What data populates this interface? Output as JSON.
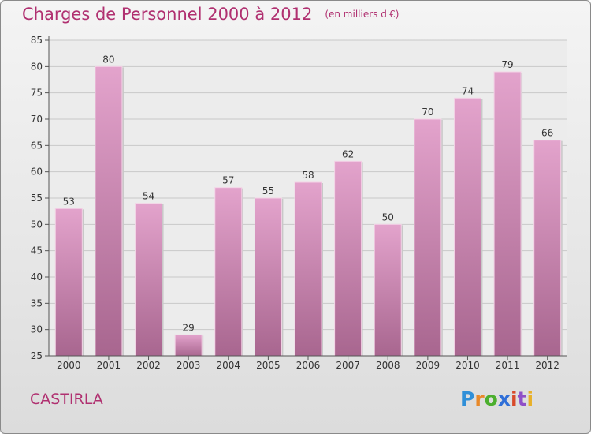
{
  "title": "Charges de Personnel 2000 à 2012",
  "subtitle": "(en milliers d'€)",
  "commune": "CASTIRLA",
  "logo": {
    "letters": [
      "P",
      "r",
      "o",
      "x",
      "i",
      "t",
      "i"
    ],
    "colors": [
      "#2f8fd8",
      "#e8892a",
      "#4caf2e",
      "#2f6fd8",
      "#d84a2a",
      "#8f4fc8",
      "#e8b02a"
    ]
  },
  "colors": {
    "accent": "#b03070",
    "bar_top": "#e3a3cc",
    "bar_bottom": "#a8668f"
  },
  "chart_data": {
    "type": "bar",
    "categories": [
      "2000",
      "2001",
      "2002",
      "2003",
      "2004",
      "2005",
      "2006",
      "2007",
      "2008",
      "2009",
      "2010",
      "2011",
      "2012"
    ],
    "values": [
      53,
      80,
      54,
      29,
      57,
      55,
      58,
      62,
      50,
      70,
      74,
      79,
      66
    ],
    "yticks": [
      25,
      30,
      35,
      40,
      45,
      50,
      55,
      60,
      65,
      70,
      75,
      80,
      85
    ],
    "ylim": [
      25,
      85
    ],
    "grid": true
  }
}
